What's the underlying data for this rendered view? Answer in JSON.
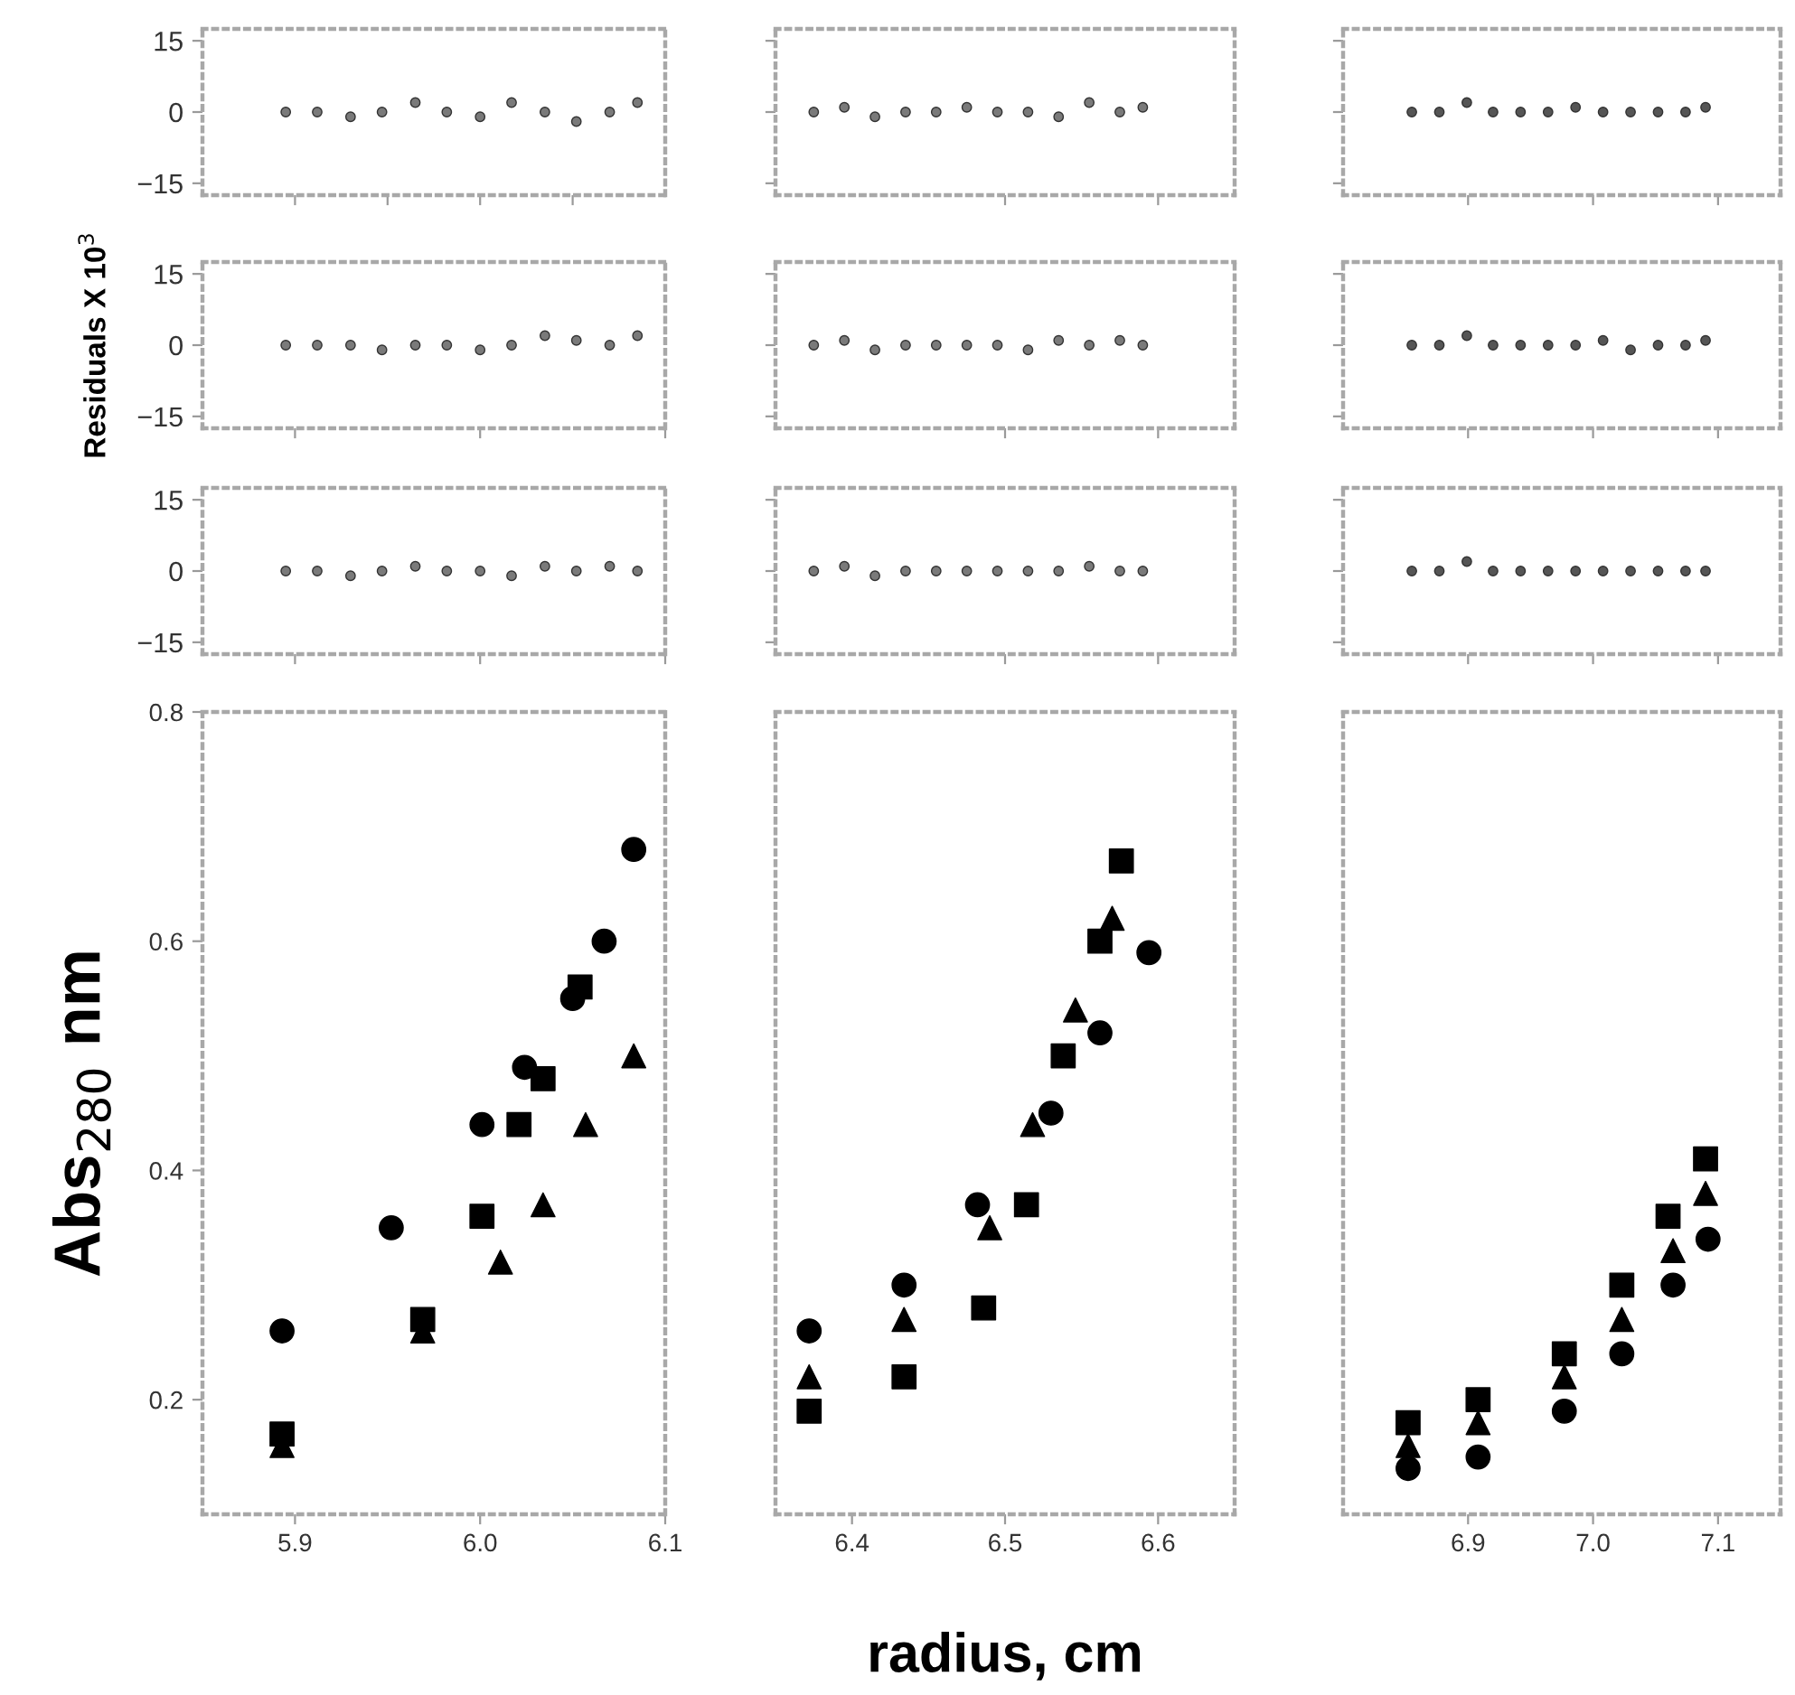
{
  "chart_data": [
    {
      "type": "scatter",
      "xlim": [
        5.85,
        6.1
      ],
      "ylim": [
        -17.5,
        17.5
      ],
      "xticks": [
        {
          "value": 5.9,
          "label": null
        },
        {
          "value": 5.95,
          "label": null
        },
        {
          "value": 6.0,
          "label": null
        },
        {
          "value": 6.05,
          "label": null
        }
      ],
      "yticks": [
        15,
        0,
        -15
      ],
      "tick_labels": "y",
      "marker": "circle",
      "grid": false,
      "series": [
        {
          "color": "#7a7a7a",
          "x": [
            5.895,
            5.912,
            5.93,
            5.947,
            5.965,
            5.982,
            6.0,
            6.017,
            6.035,
            6.052,
            6.07,
            6.085
          ],
          "values": [
            0,
            0,
            -1,
            0,
            2,
            0,
            -1,
            2,
            0,
            -2,
            0,
            2
          ]
        }
      ]
    },
    {
      "type": "scatter",
      "xlim": [
        6.35,
        6.65
      ],
      "ylim": [
        -17.5,
        17.5
      ],
      "xticks": [
        {
          "value": 6.5,
          "label": null
        },
        {
          "value": 6.6,
          "label": null
        }
      ],
      "yticks": [
        {
          "value": 15,
          "label": null
        },
        {
          "value": 0,
          "label": null
        },
        {
          "value": -15,
          "label": null
        }
      ],
      "tick_labels": false,
      "marker": "circle",
      "grid": false,
      "series": [
        {
          "color": "#7a7a7a",
          "x": [
            6.375,
            6.395,
            6.415,
            6.435,
            6.455,
            6.475,
            6.495,
            6.515,
            6.535,
            6.555,
            6.575,
            6.59
          ],
          "values": [
            0,
            1,
            -1,
            0,
            0,
            1,
            0,
            0,
            -1,
            2,
            0,
            1
          ]
        }
      ]
    },
    {
      "type": "scatter",
      "xlim": [
        6.8,
        7.15
      ],
      "ylim": [
        -17.5,
        17.5
      ],
      "xticks": [
        {
          "value": 6.9,
          "label": null
        },
        {
          "value": 7.0,
          "label": null
        },
        {
          "value": 7.1,
          "label": null
        }
      ],
      "yticks": [
        {
          "value": 15,
          "label": null
        },
        {
          "value": 0,
          "label": null
        },
        {
          "value": -15,
          "label": null
        }
      ],
      "tick_labels": false,
      "marker": "circle",
      "grid": false,
      "series": [
        {
          "color": "#555555",
          "x": [
            6.855,
            6.877,
            6.899,
            6.92,
            6.942,
            6.964,
            6.986,
            7.008,
            7.03,
            7.052,
            7.074,
            7.09
          ],
          "values": [
            0,
            0,
            2,
            0,
            0,
            0,
            1,
            0,
            0,
            0,
            0,
            1
          ]
        }
      ]
    },
    {
      "type": "scatter",
      "xlim": [
        5.85,
        6.1
      ],
      "ylim": [
        -17.5,
        17.5
      ],
      "xticks": [
        {
          "value": 5.9,
          "label": null
        },
        {
          "value": 6.0,
          "label": null
        },
        {
          "value": 6.1,
          "label": null
        }
      ],
      "yticks": [
        15,
        0,
        -15
      ],
      "tick_labels": "y",
      "ylabel": "Residuals X 10$^{3}$",
      "marker": "circle",
      "grid": false,
      "series": [
        {
          "color": "#7a7a7a",
          "x": [
            5.895,
            5.912,
            5.93,
            5.947,
            5.965,
            5.982,
            6.0,
            6.017,
            6.035,
            6.052,
            6.07,
            6.085
          ],
          "values": [
            0,
            0,
            0,
            -1,
            0,
            0,
            -1,
            0,
            2,
            1,
            0,
            2
          ]
        }
      ]
    },
    {
      "type": "scatter",
      "xlim": [
        6.35,
        6.65
      ],
      "ylim": [
        -17.5,
        17.5
      ],
      "xticks": [
        {
          "value": 6.5,
          "label": null
        },
        {
          "value": 6.6,
          "label": null
        }
      ],
      "yticks": [
        {
          "value": 15,
          "label": null
        },
        {
          "value": 0,
          "label": null
        },
        {
          "value": -15,
          "label": null
        }
      ],
      "tick_labels": false,
      "marker": "circle",
      "grid": false,
      "series": [
        {
          "color": "#7a7a7a",
          "x": [
            6.375,
            6.395,
            6.415,
            6.435,
            6.455,
            6.475,
            6.495,
            6.515,
            6.535,
            6.555,
            6.575,
            6.59
          ],
          "values": [
            0,
            1,
            -1,
            0,
            0,
            0,
            0,
            -1,
            1,
            0,
            1,
            0
          ]
        }
      ]
    },
    {
      "type": "scatter",
      "xlim": [
        6.8,
        7.15
      ],
      "ylim": [
        -17.5,
        17.5
      ],
      "xticks": [
        {
          "value": 6.9,
          "label": null
        },
        {
          "value": 7.0,
          "label": null
        },
        {
          "value": 7.1,
          "label": null
        }
      ],
      "yticks": [
        {
          "value": 15,
          "label": null
        },
        {
          "value": 0,
          "label": null
        },
        {
          "value": -15,
          "label": null
        }
      ],
      "tick_labels": false,
      "marker": "circle",
      "grid": false,
      "series": [
        {
          "color": "#555555",
          "x": [
            6.855,
            6.877,
            6.899,
            6.92,
            6.942,
            6.964,
            6.986,
            7.008,
            7.03,
            7.052,
            7.074,
            7.09
          ],
          "values": [
            0,
            0,
            2,
            0,
            0,
            0,
            0,
            1,
            -1,
            0,
            0,
            1
          ]
        }
      ]
    },
    {
      "type": "scatter",
      "xlim": [
        5.85,
        6.1
      ],
      "ylim": [
        -17.5,
        17.5
      ],
      "xticks": [
        {
          "value": 5.9,
          "label": null
        },
        {
          "value": 6.0,
          "label": null
        },
        {
          "value": 6.1,
          "label": null
        }
      ],
      "yticks": [
        15,
        0,
        -15
      ],
      "tick_labels": "y",
      "marker": "circle",
      "grid": false,
      "series": [
        {
          "color": "#7a7a7a",
          "x": [
            5.895,
            5.912,
            5.93,
            5.947,
            5.965,
            5.982,
            6.0,
            6.017,
            6.035,
            6.052,
            6.07,
            6.085
          ],
          "values": [
            0,
            0,
            -1,
            0,
            1,
            0,
            0,
            -1,
            1,
            0,
            1,
            0
          ]
        }
      ]
    },
    {
      "type": "scatter",
      "xlim": [
        6.35,
        6.65
      ],
      "ylim": [
        -17.5,
        17.5
      ],
      "xticks": [
        {
          "value": 6.5,
          "label": null
        },
        {
          "value": 6.6,
          "label": null
        }
      ],
      "yticks": [
        {
          "value": 15,
          "label": null
        },
        {
          "value": 0,
          "label": null
        },
        {
          "value": -15,
          "label": null
        }
      ],
      "tick_labels": false,
      "marker": "circle",
      "grid": false,
      "series": [
        {
          "color": "#7a7a7a",
          "x": [
            6.375,
            6.395,
            6.415,
            6.435,
            6.455,
            6.475,
            6.495,
            6.515,
            6.535,
            6.555,
            6.575,
            6.59
          ],
          "values": [
            0,
            1,
            -1,
            0,
            0,
            0,
            0,
            0,
            0,
            1,
            0,
            0
          ]
        }
      ]
    },
    {
      "type": "scatter",
      "xlim": [
        6.8,
        7.15
      ],
      "ylim": [
        -17.5,
        17.5
      ],
      "xticks": [
        {
          "value": 6.9,
          "label": null
        },
        {
          "value": 7.0,
          "label": null
        },
        {
          "value": 7.1,
          "label": null
        }
      ],
      "yticks": [
        {
          "value": 15,
          "label": null
        },
        {
          "value": 0,
          "label": null
        },
        {
          "value": -15,
          "label": null
        }
      ],
      "tick_labels": false,
      "marker": "circle",
      "grid": false,
      "series": [
        {
          "color": "#555555",
          "x": [
            6.855,
            6.877,
            6.899,
            6.92,
            6.942,
            6.964,
            6.986,
            7.008,
            7.03,
            7.052,
            7.074,
            7.09
          ],
          "values": [
            0,
            0,
            2,
            0,
            0,
            0,
            0,
            0,
            0,
            0,
            0,
            0
          ]
        }
      ]
    },
    {
      "type": "scatter",
      "xlim": [
        5.85,
        6.1
      ],
      "ylim": [
        0.1,
        0.8
      ],
      "xticks": [
        5.9,
        {
          "value": 6.0,
          "label": "6.0"
        },
        6.1
      ],
      "yticks": [
        0.2,
        0.4,
        0.6,
        0.8
      ],
      "ylabel": "Abs$_{280}$ nm",
      "grid": false,
      "series": [
        {
          "color": "#000000",
          "marker": "circle",
          "x": [
            5.893,
            5.952,
            6.001,
            6.024,
            6.05,
            6.067,
            6.083
          ],
          "values": [
            0.26,
            0.35,
            0.44,
            0.49,
            0.55,
            0.6,
            0.68
          ]
        },
        {
          "color": "#000000",
          "marker": "square",
          "x": [
            5.893,
            5.969,
            6.001,
            6.021,
            6.034,
            6.054
          ],
          "values": [
            0.17,
            0.27,
            0.36,
            0.44,
            0.48,
            0.56
          ]
        },
        {
          "color": "#000000",
          "marker": "triangle",
          "x": [
            5.893,
            5.969,
            6.011,
            6.034,
            6.057,
            6.083
          ],
          "values": [
            0.16,
            0.26,
            0.32,
            0.37,
            0.44,
            0.5
          ]
        }
      ]
    },
    {
      "type": "scatter",
      "xlim": [
        6.35,
        6.65
      ],
      "ylim": [
        0.1,
        0.8
      ],
      "xticks": [
        6.4,
        6.5,
        6.6
      ],
      "tick_labels": "x",
      "xlabel": "radius, cm",
      "grid": false,
      "series": [
        {
          "color": "#000000",
          "marker": "circle",
          "x": [
            6.372,
            6.434,
            6.482,
            6.53,
            6.562,
            6.594
          ],
          "values": [
            0.26,
            0.3,
            0.37,
            0.45,
            0.52,
            0.59
          ]
        },
        {
          "color": "#000000",
          "marker": "triangle",
          "x": [
            6.372,
            6.434,
            6.49,
            6.518,
            6.546,
            6.57
          ],
          "values": [
            0.22,
            0.27,
            0.35,
            0.44,
            0.54,
            0.62
          ]
        },
        {
          "color": "#000000",
          "marker": "square",
          "x": [
            6.372,
            6.434,
            6.486,
            6.514,
            6.538,
            6.562,
            6.576
          ],
          "values": [
            0.19,
            0.22,
            0.28,
            0.37,
            0.5,
            0.6,
            0.67
          ]
        }
      ]
    },
    {
      "type": "scatter",
      "xlim": [
        6.8,
        7.15
      ],
      "ylim": [
        0.1,
        0.8
      ],
      "xticks": [
        6.9,
        {
          "value": 7.0,
          "label": "7.0"
        },
        7.1
      ],
      "tick_labels": "x",
      "grid": false,
      "series": [
        {
          "color": "#000000",
          "marker": "square",
          "x": [
            6.852,
            6.908,
            6.977,
            7.023,
            7.06,
            7.09
          ],
          "values": [
            0.18,
            0.2,
            0.24,
            0.3,
            0.36,
            0.41
          ]
        },
        {
          "color": "#000000",
          "marker": "triangle",
          "x": [
            6.852,
            6.908,
            6.977,
            7.023,
            7.064,
            7.09
          ],
          "values": [
            0.16,
            0.18,
            0.22,
            0.27,
            0.33,
            0.38
          ]
        },
        {
          "color": "#000000",
          "marker": "circle",
          "x": [
            6.852,
            6.908,
            6.977,
            7.023,
            7.064,
            7.092
          ],
          "values": [
            0.14,
            0.15,
            0.19,
            0.24,
            0.3,
            0.34
          ]
        }
      ]
    }
  ]
}
